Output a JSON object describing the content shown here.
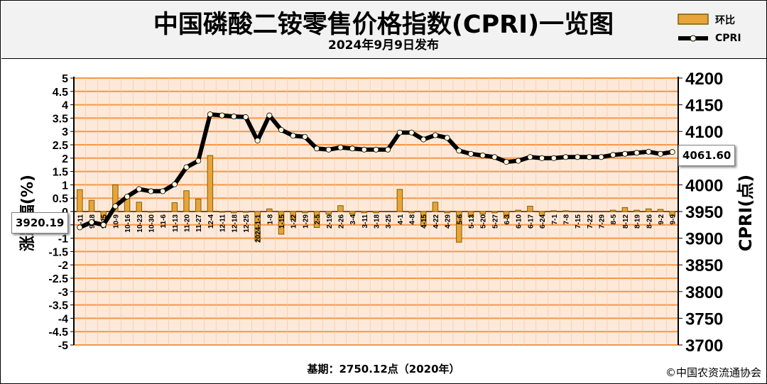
{
  "header": {
    "title": "中国磷酸二铵零售价格指数(CPRI)一览图",
    "subtitle": "2024年9月9日发布"
  },
  "legend": {
    "bar_label": "环比",
    "line_label": "CPRI"
  },
  "footer": {
    "base_note": "基期：2750.12点（2020年）",
    "copyright": "©中国农资流通协会"
  },
  "callouts": {
    "first_value": "3920.19",
    "last_value": "4061.60"
  },
  "colors": {
    "plot_bg": "#fde9d9",
    "grid_band": "#f79646",
    "bar_fill": "#e8a33a",
    "bar_edge": "#7f6000",
    "line": "#000000",
    "marker": "#fffbe0"
  },
  "chart_data": {
    "type": "bar",
    "title": "中国磷酸二铵零售价格指数(CPRI)一览图",
    "ylabel_left": "涨跌幅(%)",
    "ylabel_right": "CPRI(点)",
    "ylim_left": [
      -5,
      5
    ],
    "ylim_right": [
      3700,
      4200
    ],
    "yticks_left": [
      "5",
      "4.5",
      "4",
      "3.5",
      "3",
      "2.5",
      "2",
      "1.5",
      "1",
      "0.5",
      "0",
      "-0.5",
      "-1",
      "-1.5",
      "-2",
      "-2.5",
      "-3",
      "-3.5",
      "-4",
      "-4.5",
      "-5"
    ],
    "yticks_right": [
      "4200",
      "4150",
      "4100",
      "4050",
      "4000",
      "3950",
      "3900",
      "3850",
      "3800",
      "3750",
      "3700"
    ],
    "categories": [
      "9-11",
      "9-18",
      "9-25",
      "10-9",
      "10-16",
      "10-23",
      "10-30",
      "11-6",
      "11-13",
      "11-20",
      "11-27",
      "12-4",
      "12-11",
      "12-18",
      "12-25",
      "2024-1-1",
      "1-8",
      "1-15",
      "1-22",
      "1-29",
      "2-5",
      "2-19",
      "2-26",
      "3-4",
      "3-11",
      "3-18",
      "3-25",
      "4-1",
      "4-8",
      "4-15",
      "4-22",
      "4-29",
      "5-6",
      "5-13",
      "5-20",
      "5-27",
      "6-3",
      "6-10",
      "6-17",
      "6-24",
      "7-1",
      "7-8",
      "7-15",
      "7-22",
      "7-29",
      "8-5",
      "8-12",
      "8-19",
      "8-26",
      "9-2",
      "9-9"
    ],
    "series": [
      {
        "name": "环比",
        "type": "bar",
        "axis": "left",
        "values": [
          0.82,
          0.42,
          -0.3,
          1.0,
          0.5,
          0.35,
          -0.02,
          0.0,
          0.33,
          0.78,
          0.47,
          2.1,
          -0.02,
          -0.05,
          -0.03,
          -1.1,
          0.1,
          -0.85,
          -0.3,
          -0.05,
          -0.6,
          -0.1,
          0.22,
          -0.1,
          -0.05,
          -0.05,
          0.0,
          0.83,
          -0.05,
          -0.55,
          0.35,
          -0.05,
          -1.15,
          -0.2,
          -0.1,
          -0.05,
          -0.25,
          0.05,
          0.2,
          -0.15,
          0.03,
          0.03,
          0.0,
          0.0,
          0.0,
          0.05,
          0.15,
          0.05,
          0.1,
          0.08,
          -0.15
        ]
      },
      {
        "name": "CPRI",
        "type": "line",
        "axis": "right",
        "values": [
          3920.19,
          3930,
          3925,
          3960,
          3978,
          3992,
          3988,
          3988,
          4001,
          4033,
          4045,
          4132,
          4130,
          4128,
          4127,
          4083,
          4130,
          4103,
          4092,
          4090,
          4068,
          4066,
          4070,
          4068,
          4066,
          4066,
          4066,
          4098,
          4098,
          4085,
          4093,
          4088,
          4064,
          4058,
          4055,
          4052,
          4043,
          4045,
          4052,
          4050,
          4050,
          4052,
          4052,
          4052,
          4052,
          4056,
          4058,
          4060,
          4062,
          4058,
          4061.6
        ]
      }
    ]
  }
}
